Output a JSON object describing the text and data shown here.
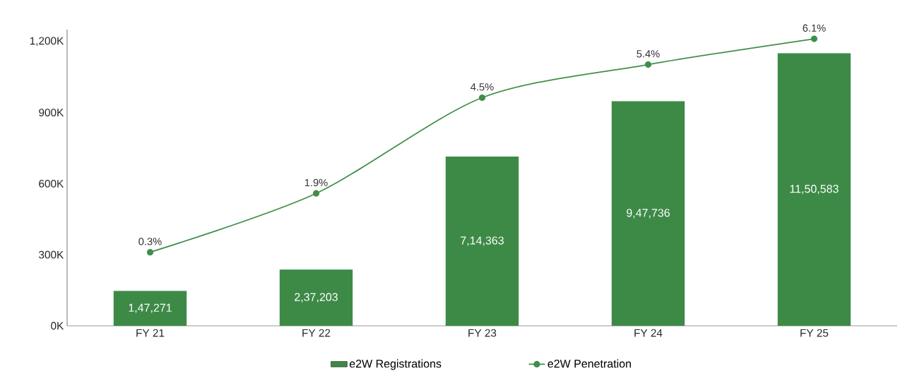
{
  "chart_data": {
    "type": "bar",
    "categories": [
      "FY 21",
      "FY 22",
      "FY 23",
      "FY 24",
      "FY 25"
    ],
    "series": [
      {
        "name": "e2W Registrations",
        "color": "#3d8a47",
        "values": [
          147271,
          237203,
          714363,
          947736,
          1150583
        ],
        "value_labels": [
          "1,47,271",
          "2,37,203",
          "7,14,363",
          "9,47,736",
          "11,50,583"
        ]
      },
      {
        "name": "e2W Penetration",
        "type": "line",
        "axis": "y2",
        "color": "#3f8f4a",
        "marker": "circle",
        "values": [
          0.3,
          1.9,
          4.5,
          5.4,
          6.1
        ],
        "value_labels": [
          "0.3%",
          "1.9%",
          "4.5%",
          "5.4%",
          "6.1%"
        ]
      }
    ],
    "ylim": [
      0,
      1250000
    ],
    "yticks": [
      {
        "value": 0,
        "label": "0K"
      },
      {
        "value": 300000,
        "label": "300K"
      },
      {
        "value": 600000,
        "label": "600K"
      },
      {
        "value": 900000,
        "label": "900K"
      },
      {
        "value": 1200000,
        "label": "1,200K"
      }
    ],
    "y2lim": [
      -1.7,
      6.35
    ],
    "legend": "bottom",
    "grid": false
  }
}
